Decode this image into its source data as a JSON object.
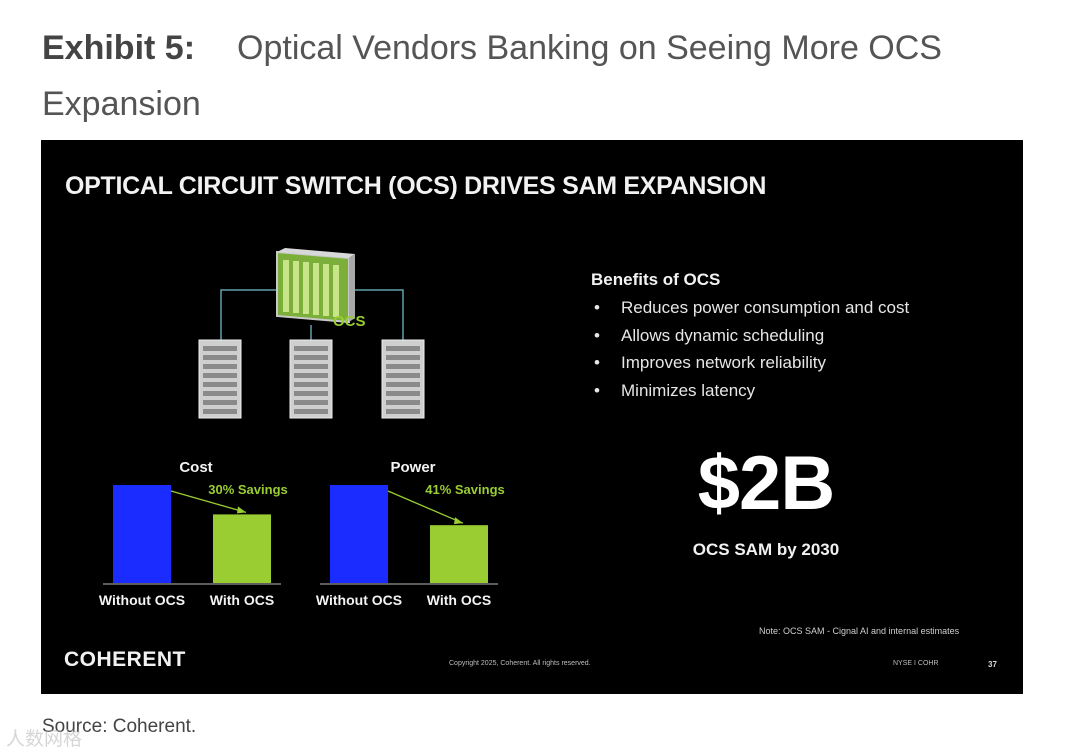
{
  "exhibit": {
    "label": "Exhibit 5:",
    "title": "Optical Vendors Banking on Seeing More OCS Expansion"
  },
  "slide": {
    "title": "OPTICAL CIRCUIT SWITCH (OCS) DRIVES SAM EXPANSION",
    "diagram_label": "OCS",
    "benefits_heading": "Benefits of OCS",
    "benefits": [
      "Reduces power consumption and cost",
      "Allows dynamic scheduling",
      "Improves network reliability",
      "Minimizes latency"
    ],
    "big_number": "$2B",
    "big_caption": "OCS SAM by 2030",
    "note": "Note: OCS SAM - Cignal AI and internal estimates",
    "logo": "COHERENT",
    "copyright": "Copyright 2025, Coherent. All rights reserved.",
    "ticker": "NYSE I COHR",
    "page": "37"
  },
  "chart_data": [
    {
      "type": "bar",
      "title": "Cost",
      "categories": [
        "Without OCS",
        "With OCS"
      ],
      "values": [
        100,
        70
      ],
      "annotation": "30% Savings",
      "colors": [
        "#1a2cff",
        "#9acd32"
      ],
      "ylim": [
        0,
        100
      ]
    },
    {
      "type": "bar",
      "title": "Power",
      "categories": [
        "Without OCS",
        "With OCS"
      ],
      "values": [
        100,
        59
      ],
      "annotation": "41% Savings",
      "colors": [
        "#1a2cff",
        "#9acd32"
      ],
      "ylim": [
        0,
        100
      ]
    }
  ],
  "source": "Source: Coherent.",
  "watermark": "人数网格"
}
